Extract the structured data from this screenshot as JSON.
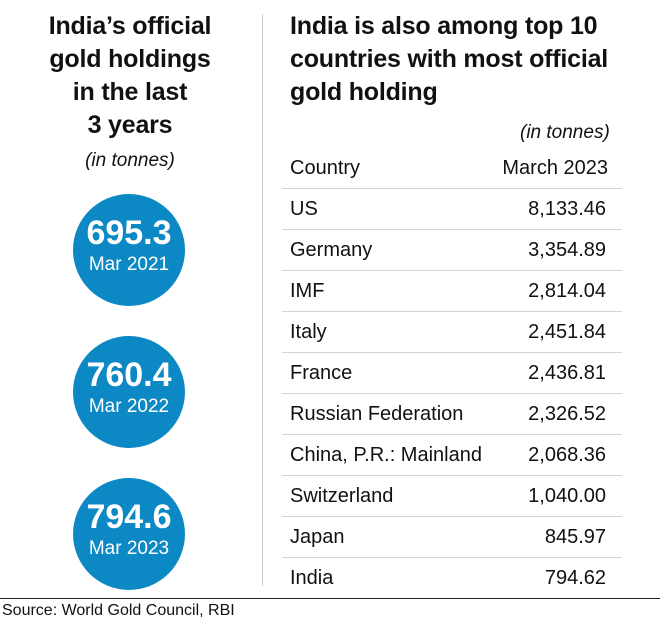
{
  "left_panel": {
    "title_lines": [
      "India’s official",
      "gold holdings",
      "in the last",
      "3  years"
    ],
    "unit": "(in tonnes)"
  },
  "right_panel": {
    "title_lines": [
      "India is also among top 10",
      "countries with most official",
      "gold holding"
    ],
    "unit": "(in tonnes)"
  },
  "source": "Source: World Gold Council, RBI",
  "colors": {
    "circle": "#0c89c4",
    "text": "#111111",
    "row_border": "#d4d4d4"
  },
  "chart_data": [
    {
      "type": "bubble",
      "title": "India’s official gold holdings in the last 3  years",
      "unit": "(in tonnes)",
      "points": [
        {
          "label": "Mar 2021",
          "value": 695.3,
          "display": "695.3"
        },
        {
          "label": "Mar 2022",
          "value": 760.4,
          "display": "760.4"
        },
        {
          "label": "Mar 2023",
          "value": 794.6,
          "display": "794.6"
        }
      ]
    },
    {
      "type": "table",
      "title": "India is also among top 10 countries with most official gold holding",
      "unit": "(in tonnes)",
      "columns": [
        "Country",
        "March 2023"
      ],
      "rows": [
        {
          "country": "US",
          "value": 8133.46,
          "display": "8,133.46"
        },
        {
          "country": "Germany",
          "value": 3354.89,
          "display": "3,354.89"
        },
        {
          "country": "IMF",
          "value": 2814.04,
          "display": "2,814.04"
        },
        {
          "country": "Italy",
          "value": 2451.84,
          "display": "2,451.84"
        },
        {
          "country": "France",
          "value": 2436.81,
          "display": "2,436.81"
        },
        {
          "country": "Russian Federation",
          "value": 2326.52,
          "display": "2,326.52"
        },
        {
          "country": "China, P.R.: Mainland",
          "value": 2068.36,
          "display": "2,068.36"
        },
        {
          "country": "Switzerland",
          "value": 1040.0,
          "display": "1,040.00"
        },
        {
          "country": "Japan",
          "value": 845.97,
          "display": "845.97"
        },
        {
          "country": "India",
          "value": 794.62,
          "display": "794.62"
        }
      ]
    }
  ]
}
